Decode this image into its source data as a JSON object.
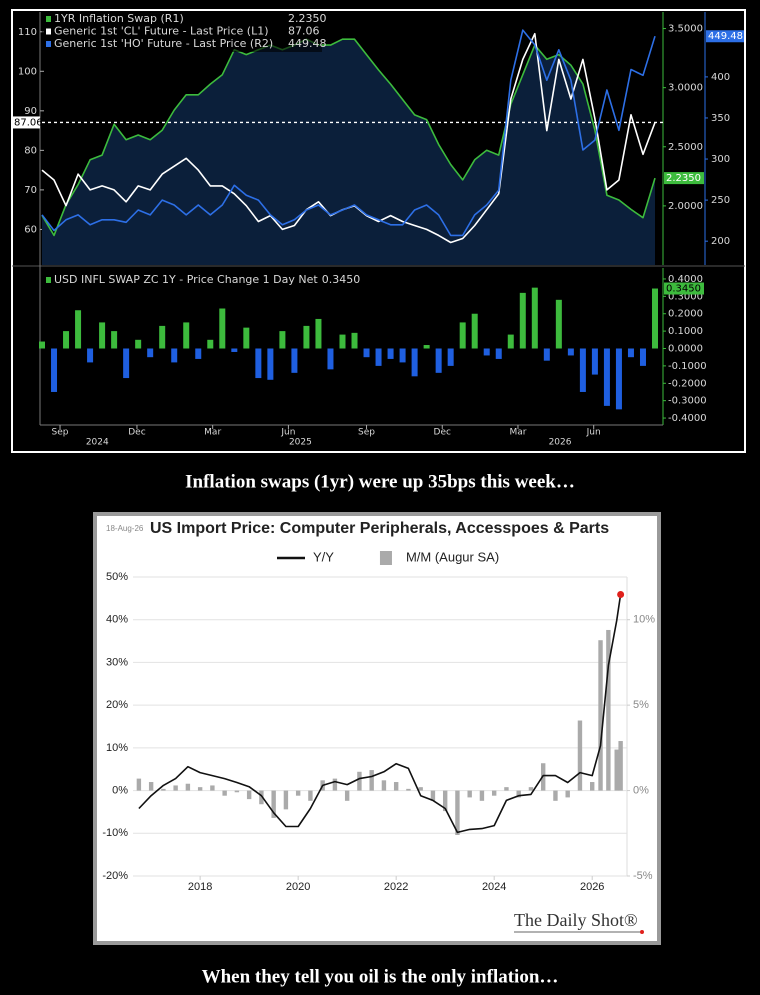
{
  "captions": [
    "Inflation swaps (1yr) were up 35bps this week…",
    "When they tell you oil is the only inflation…"
  ],
  "chart_data": [
    {
      "type": "line",
      "legend": "upper left",
      "xlim": [
        0,
        51
      ],
      "ylim": [
        51,
        115
      ],
      "yticks": [
        60,
        70,
        80,
        90,
        100,
        110
      ],
      "y2lim": [
        1.5,
        3.64
      ],
      "y2ticks": [
        {
          "value": 2,
          "label": "2.0000"
        },
        {
          "value": 2.5,
          "label": "2.5000"
        },
        {
          "value": 3,
          "label": "3.0000"
        },
        {
          "value": 3.5,
          "label": "3.5000"
        }
      ],
      "y3lim": [
        171,
        479
      ],
      "y3ticks": [
        200,
        250,
        300,
        350,
        400
      ],
      "series": [
        {
          "name": "1YR Inflation Swap (R1)",
          "last_label": "2.2350",
          "color": "#3dbb3d",
          "area_color": "#0b1f3a",
          "axis": "y2",
          "values": [
            1.92,
            1.75,
            2.01,
            2.18,
            2.39,
            2.43,
            2.69,
            2.56,
            2.6,
            2.56,
            2.64,
            2.81,
            2.94,
            2.94,
            3.03,
            3.11,
            3.32,
            3.28,
            3.32,
            3.36,
            3.32,
            3.36,
            3.41,
            3.36,
            3.36,
            3.41,
            3.41,
            3.28,
            3.15,
            3.03,
            2.9,
            2.77,
            2.73,
            2.52,
            2.35,
            2.22,
            2.39,
            2.47,
            2.43,
            2.86,
            3.11,
            3.36,
            3.24,
            3.28,
            3.19,
            3.03,
            2.64,
            2.09,
            2.05,
            1.97,
            1.9,
            2.235
          ]
        },
        {
          "name": "Generic 1st 'CL' Future - Last Price (L1)",
          "last_label": "87.06",
          "color": "#ffffff",
          "axis": "y",
          "values": [
            75,
            72.5,
            66,
            74,
            70,
            71,
            70,
            67,
            71,
            70,
            74,
            76,
            78,
            75,
            71,
            71,
            69,
            66,
            62,
            63.5,
            60,
            61,
            65,
            67,
            63.5,
            65,
            66,
            63.5,
            62,
            63.5,
            62,
            61,
            60,
            58.5,
            56.7,
            57.7,
            61,
            65,
            69,
            93,
            103,
            109.5,
            85,
            103,
            93,
            103,
            88,
            70,
            72.5,
            89,
            79,
            87.06
          ]
        },
        {
          "name": "Generic 1st 'HO' Future - Last Price (R2)",
          "last_label": "449.48",
          "color": "#2d6fe6",
          "axis": "y3",
          "values": [
            232,
            213,
            226,
            232,
            220,
            226,
            226,
            223,
            238,
            232,
            250,
            244,
            232,
            244,
            232,
            244,
            268,
            256,
            250,
            232,
            220,
            226,
            238,
            244,
            232,
            238,
            244,
            232,
            226,
            220,
            220,
            238,
            244,
            232,
            207,
            207,
            232,
            244,
            262,
            396,
            457,
            439,
            396,
            433,
            396,
            311,
            323,
            384,
            335,
            409,
            402,
            449.48
          ]
        }
      ]
    },
    {
      "type": "bar",
      "name": "USD INFL SWAP ZC 1Y - Price Change 1 Day Net",
      "last_label": "0.3450",
      "positive_color": "#3dbb3d",
      "negative_color": "#1f5fe0",
      "xlim": [
        0,
        51
      ],
      "ylim": [
        -0.44,
        0.463
      ],
      "yticks": [
        {
          "value": 0.4,
          "label": "0.4000"
        },
        {
          "value": 0.3,
          "label": "0.3000"
        },
        {
          "value": 0.2,
          "label": "0.2000"
        },
        {
          "value": 0.1,
          "label": "0.1000"
        },
        {
          "value": 0,
          "label": "0.0000"
        },
        {
          "value": -0.1,
          "label": "-0.1000"
        },
        {
          "value": -0.2,
          "label": "-0.2000"
        },
        {
          "value": -0.3,
          "label": "-0.3000"
        },
        {
          "value": -0.4,
          "label": "-0.4000"
        }
      ],
      "xticks": [
        {
          "value": 1.5,
          "label": "Sep"
        },
        {
          "value": 7.9,
          "label": "Dec"
        },
        {
          "value": 14.2,
          "label": "Mar"
        },
        {
          "value": 20.5,
          "label": "Jun"
        },
        {
          "value": 27,
          "label": "Sep"
        },
        {
          "value": 33.3,
          "label": "Dec"
        },
        {
          "value": 39.6,
          "label": "Mar"
        },
        {
          "value": 45.9,
          "label": "Jun"
        }
      ],
      "xyearticks": [
        {
          "value": 4.6,
          "label": "2024"
        },
        {
          "value": 21.5,
          "label": "2025"
        },
        {
          "value": 43.1,
          "label": "2026"
        }
      ],
      "values": [
        0.04,
        -0.25,
        0.1,
        0.22,
        -0.08,
        0.15,
        0.1,
        -0.17,
        0.05,
        -0.05,
        0.13,
        -0.08,
        0.15,
        -0.06,
        0.05,
        0.23,
        -0.02,
        0.12,
        -0.17,
        -0.18,
        0.1,
        -0.14,
        0.13,
        0.17,
        -0.12,
        0.08,
        0.09,
        -0.05,
        -0.1,
        -0.06,
        -0.08,
        -0.16,
        0.02,
        -0.14,
        -0.1,
        0.15,
        0.2,
        -0.04,
        -0.06,
        0.08,
        0.32,
        0.35,
        -0.07,
        0.28,
        -0.04,
        -0.25,
        -0.15,
        -0.33,
        -0.35,
        -0.05,
        -0.1,
        0.345
      ]
    },
    {
      "type": "line",
      "date": "18-Aug-26",
      "title": "US Import Price: Computer Peripherals, Accesspoes & Parts",
      "source": "The Daily Shot®",
      "grid": true,
      "highlight_last_color": "#e0201b",
      "x": [
        2016.75,
        2017,
        2017.25,
        2017.5,
        2017.75,
        2018,
        2018.25,
        2018.5,
        2018.75,
        2019,
        2019.25,
        2019.5,
        2019.75,
        2020,
        2020.25,
        2020.5,
        2020.75,
        2021,
        2021.25,
        2021.5,
        2021.75,
        2022,
        2022.25,
        2022.5,
        2022.75,
        2023,
        2023.25,
        2023.5,
        2023.75,
        2024,
        2024.25,
        2024.5,
        2024.75,
        2025,
        2025.25,
        2025.5,
        2025.75,
        2026,
        2026.17,
        2026.33,
        2026.5,
        2026.58
      ],
      "xlim": [
        2016.63,
        2026.71
      ],
      "xticks": [
        2018,
        2020,
        2022,
        2024,
        2026
      ],
      "ylim": [
        -20,
        50
      ],
      "yticks": [
        {
          "value": 50,
          "label": "50%"
        },
        {
          "value": 40,
          "label": "40%"
        },
        {
          "value": 30,
          "label": "30%"
        },
        {
          "value": 20,
          "label": "20%"
        },
        {
          "value": 10,
          "label": "10%"
        },
        {
          "value": 0,
          "label": "0%"
        },
        {
          "value": -10,
          "label": "-10%"
        },
        {
          "value": -20,
          "label": "-20%"
        }
      ],
      "y2lim": [
        -5,
        12.5
      ],
      "y2ticks": [
        {
          "value": 10,
          "label": "10%"
        },
        {
          "value": 5,
          "label": "5%"
        },
        {
          "value": 0,
          "label": "0%"
        },
        {
          "value": -5,
          "label": "-5%"
        }
      ],
      "series": [
        {
          "name": "Y/Y",
          "kind": "line",
          "color": "#111111",
          "axis": "y",
          "values": [
            -4.2,
            -1.2,
            1.2,
            2.8,
            5.6,
            4.2,
            3.5,
            2.8,
            1.9,
            0.9,
            -1.2,
            -5.2,
            -8.4,
            -8.4,
            -4.2,
            1.2,
            2.1,
            1.4,
            2.8,
            3.3,
            4.4,
            6.3,
            5.2,
            -1.2,
            -2.3,
            -4.2,
            -9.8,
            -9.1,
            -8.9,
            -8.2,
            -2.3,
            -1.2,
            -0.9,
            3.5,
            3.5,
            1.9,
            4.2,
            3.5,
            10.5,
            29.3,
            39.8,
            45.9
          ]
        },
        {
          "name": "M/M (Augur SA)",
          "kind": "bar",
          "color": "#aaaaaa",
          "axis": "y2",
          "values": [
            0.7,
            0.5,
            0.1,
            0.3,
            0.4,
            0.2,
            0.3,
            -0.3,
            -0.1,
            -0.5,
            -0.8,
            -1.6,
            -1.1,
            -0.3,
            -0.6,
            0.6,
            0.7,
            -0.6,
            1.1,
            1.2,
            0.6,
            0.5,
            0.1,
            0.2,
            -0.6,
            -1.2,
            -2.6,
            -0.4,
            -0.6,
            -0.3,
            0.2,
            -0.4,
            0.2,
            1.6,
            -0.6,
            -0.4,
            4.1,
            0.5,
            8.8,
            9.4,
            2.4,
            2.9
          ]
        }
      ]
    }
  ]
}
